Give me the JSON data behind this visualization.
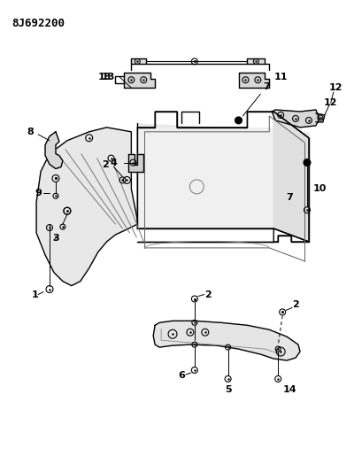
{
  "title": "8J692200",
  "bg": "#ffffff",
  "lc": "#000000",
  "lw": 1.0
}
